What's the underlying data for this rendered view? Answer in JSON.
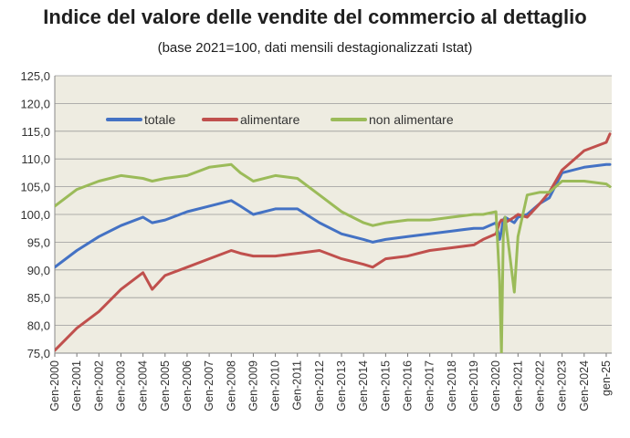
{
  "chart_data": {
    "type": "line",
    "title": "Indice del valore delle vendite del commercio al dettaglio",
    "subtitle": "(base 2021=100, dati mensili destagionalizzati Istat)",
    "xlabel": "",
    "ylabel": "",
    "ylim": [
      75,
      125
    ],
    "yticks": [
      "75,0",
      "80,0",
      "85,0",
      "90,0",
      "95,0",
      "100,0",
      "105,0",
      "110,0",
      "115,0",
      "120,0",
      "125,0"
    ],
    "xticks": [
      "Gen-2000",
      "Gen-2001",
      "Gen-2002",
      "Gen-2003",
      "Gen-2004",
      "Gen-2005",
      "Gen-2006",
      "Gen-2007",
      "Gen-2008",
      "Gen-2009",
      "Gen-2010",
      "Gen-2011",
      "Gen-2012",
      "Gen-2013",
      "Gen-2014",
      "Gen-2015",
      "Gen-2016",
      "Gen-2017",
      "Gen-2018",
      "Gen-2019",
      "Gen-2020",
      "Gen-2021",
      "Gen-2022",
      "Gen-2023",
      "Gen-2024",
      "gen-25"
    ],
    "grid": "horizontal",
    "legend_position": "top-left",
    "plot_background": "#EEECE1",
    "series": [
      {
        "name": "totale",
        "color": "#4472C4",
        "x": [
          "2000-01",
          "2001-01",
          "2002-01",
          "2003-01",
          "2004-01",
          "2004-06",
          "2005-01",
          "2006-01",
          "2007-01",
          "2008-01",
          "2008-06",
          "2009-01",
          "2010-01",
          "2011-01",
          "2012-01",
          "2013-01",
          "2014-01",
          "2014-06",
          "2015-01",
          "2016-01",
          "2017-01",
          "2018-01",
          "2019-01",
          "2019-06",
          "2020-01",
          "2020-03",
          "2020-04",
          "2020-05",
          "2020-06",
          "2020-11",
          "2021-01",
          "2021-06",
          "2022-01",
          "2022-06",
          "2023-01",
          "2024-01",
          "2025-01",
          "2025-03"
        ],
        "values": [
          90.5,
          93.5,
          96,
          98,
          99.5,
          98.5,
          99,
          100.5,
          101.5,
          102.5,
          101.5,
          100,
          101,
          101,
          98.5,
          96.5,
          95.5,
          95,
          95.5,
          96,
          96.5,
          97,
          97.5,
          97.5,
          98.5,
          95.5,
          97,
          99,
          99.5,
          98.5,
          99.5,
          100,
          102,
          103,
          107.5,
          108.5,
          109,
          109
        ]
      },
      {
        "name": "alimentare",
        "color": "#C0504D",
        "x": [
          "2000-01",
          "2001-01",
          "2002-01",
          "2003-01",
          "2004-01",
          "2004-06",
          "2005-01",
          "2006-01",
          "2007-01",
          "2008-01",
          "2008-06",
          "2009-01",
          "2010-01",
          "2011-01",
          "2012-01",
          "2013-01",
          "2014-01",
          "2014-06",
          "2015-01",
          "2016-01",
          "2017-01",
          "2018-01",
          "2019-01",
          "2019-06",
          "2020-01",
          "2020-03",
          "2020-04",
          "2020-05",
          "2020-06",
          "2020-11",
          "2021-01",
          "2021-06",
          "2022-01",
          "2022-06",
          "2023-01",
          "2024-01",
          "2025-01",
          "2025-03"
        ],
        "values": [
          75.5,
          79.5,
          82.5,
          86.5,
          89.5,
          86.5,
          89,
          90.5,
          92,
          93.5,
          93,
          92.5,
          92.5,
          93,
          93.5,
          92,
          91,
          90.5,
          92,
          92.5,
          93.5,
          94,
          94.5,
          95.5,
          96.5,
          98.5,
          99,
          99,
          98.5,
          99.5,
          100,
          99.5,
          102,
          104,
          108,
          111.5,
          113,
          114.5
        ]
      },
      {
        "name": "non alimentare",
        "color": "#9BBB59",
        "x": [
          "2000-01",
          "2001-01",
          "2002-01",
          "2003-01",
          "2004-01",
          "2004-06",
          "2005-01",
          "2006-01",
          "2007-01",
          "2008-01",
          "2008-06",
          "2009-01",
          "2010-01",
          "2011-01",
          "2012-01",
          "2013-01",
          "2014-01",
          "2014-06",
          "2015-01",
          "2016-01",
          "2017-01",
          "2018-01",
          "2019-01",
          "2019-06",
          "2020-01",
          "2020-03",
          "2020-04",
          "2020-05",
          "2020-06",
          "2020-11",
          "2021-01",
          "2021-06",
          "2022-01",
          "2022-06",
          "2023-01",
          "2024-01",
          "2025-01",
          "2025-03"
        ],
        "values": [
          101.5,
          104.5,
          106,
          107,
          106.5,
          106,
          106.5,
          107,
          108.5,
          109,
          107.5,
          106,
          107,
          106.5,
          103.5,
          100.5,
          98.5,
          98,
          98.5,
          99,
          99,
          99.5,
          100,
          100,
          100.5,
          88,
          75,
          96,
          99.5,
          86,
          96,
          103.5,
          104,
          104,
          106,
          106,
          105.5,
          105
        ]
      }
    ]
  }
}
